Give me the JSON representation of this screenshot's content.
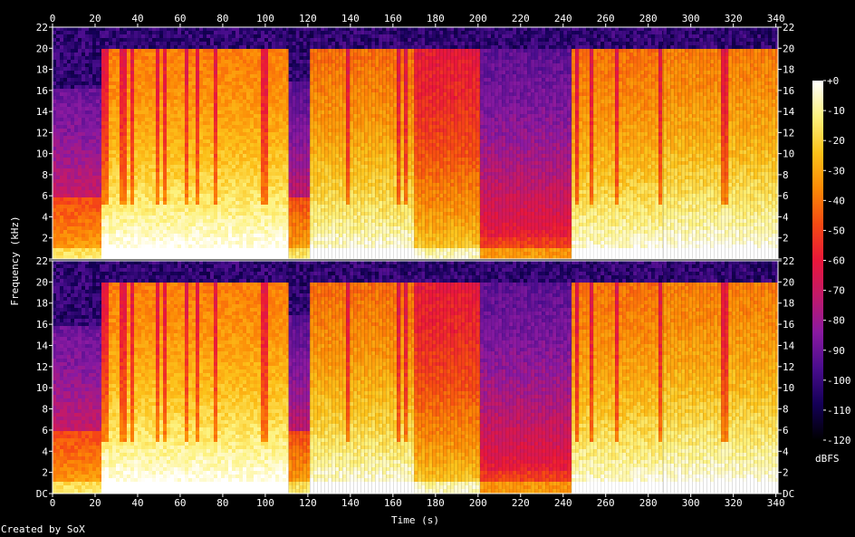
{
  "chart_data": {
    "type": "heatmap",
    "subtype": "spectrogram",
    "xlabel": "Time (s)",
    "ylabel": "Frequency (kHz)",
    "xlim": [
      0,
      341
    ],
    "ylim": [
      0,
      22
    ],
    "x_ticks": [
      "0",
      "20",
      "40",
      "60",
      "80",
      "100",
      "120",
      "140",
      "160",
      "180",
      "200",
      "220",
      "240",
      "260",
      "280",
      "300",
      "320",
      "340"
    ],
    "y_ticks": [
      "DC",
      "2",
      "4",
      "6",
      "8",
      "10",
      "12",
      "14",
      "16",
      "18",
      "20",
      "22"
    ],
    "channels": 2,
    "colorbar": {
      "label": "dBFS",
      "ticks": [
        "+0",
        "-10",
        "-20",
        "-30",
        "-40",
        "-50",
        "-60",
        "-70",
        "-80",
        "-90",
        "-100",
        "-110",
        "-120"
      ],
      "range": [
        -120,
        0
      ],
      "palette": [
        "#000000",
        "#140057",
        "#4a0d8e",
        "#8a1aa1",
        "#c21a6a",
        "#e9173a",
        "#f64a13",
        "#fc8a06",
        "#fcc21a",
        "#fdf27e",
        "#ffffff"
      ]
    },
    "segments": [
      {
        "t0": 0,
        "t1": 23,
        "kind": "intro",
        "cutoff_khz": 16,
        "level": 0.55
      },
      {
        "t0": 23,
        "t1": 111,
        "kind": "loud",
        "cutoff_khz": 20,
        "level": 0.8
      },
      {
        "t0": 111,
        "t1": 121,
        "kind": "break",
        "cutoff_khz": 17,
        "level": 0.55
      },
      {
        "t0": 121,
        "t1": 170,
        "kind": "loud",
        "cutoff_khz": 20,
        "level": 0.78
      },
      {
        "t0": 170,
        "t1": 201,
        "kind": "medium",
        "cutoff_khz": 20,
        "level": 0.62
      },
      {
        "t0": 201,
        "t1": 244,
        "kind": "quiet",
        "cutoff_khz": 20,
        "level": 0.4
      },
      {
        "t0": 244,
        "t1": 287,
        "kind": "loud",
        "cutoff_khz": 20,
        "level": 0.78
      },
      {
        "t0": 287,
        "t1": 341,
        "kind": "loud",
        "cutoff_khz": 20,
        "level": 0.8
      }
    ]
  },
  "footer": {
    "credit": "Created by SoX"
  }
}
